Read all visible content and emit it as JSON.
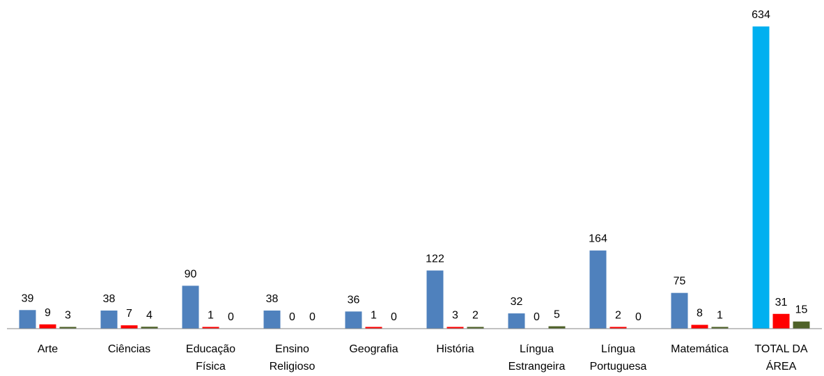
{
  "chart_data": {
    "type": "bar",
    "title": "",
    "xlabel": "",
    "ylabel": "",
    "ylim": [
      0,
      634
    ],
    "grid": false,
    "legend": "none",
    "categories": [
      [
        "Arte"
      ],
      [
        "Ciências"
      ],
      [
        "Educação",
        "Física"
      ],
      [
        "Ensino",
        "Religioso"
      ],
      [
        "Geografia"
      ],
      [
        "História"
      ],
      [
        "Língua",
        "Estrangeira"
      ],
      [
        "Língua",
        "Portuguesa"
      ],
      [
        "Matemática"
      ],
      [
        "TOTAL DA",
        "ÁREA"
      ]
    ],
    "series": [
      {
        "color": "#4f81bd",
        "values": [
          39,
          38,
          90,
          38,
          36,
          122,
          32,
          164,
          75,
          634
        ]
      },
      {
        "color": "#ff0000",
        "values": [
          9,
          7,
          1,
          0,
          1,
          3,
          0,
          2,
          8,
          31
        ]
      },
      {
        "color": "#4f6228",
        "values": [
          3,
          4,
          0,
          0,
          0,
          2,
          5,
          0,
          1,
          15
        ]
      }
    ],
    "special_bar_colors": {
      "total_first_series": "#00b0f0"
    },
    "axis_color": "#868686"
  }
}
